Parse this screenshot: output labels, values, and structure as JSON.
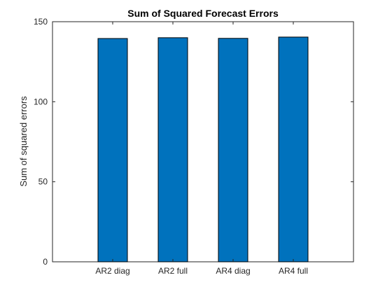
{
  "chart_data": {
    "type": "bar",
    "title": "Sum of Squared Forecast Errors",
    "xlabel": "",
    "ylabel": "Sum of squared errors",
    "categories": [
      "AR2 diag",
      "AR2 full",
      "AR4 diag",
      "AR4 full"
    ],
    "values": [
      139.5,
      140.0,
      139.6,
      140.4
    ],
    "ylim": [
      0,
      150
    ],
    "yticks": [
      0,
      50,
      100,
      150
    ],
    "grid": false,
    "legend": "none",
    "bar_color": "#0072BD",
    "bar_edge_color": "#000000"
  }
}
